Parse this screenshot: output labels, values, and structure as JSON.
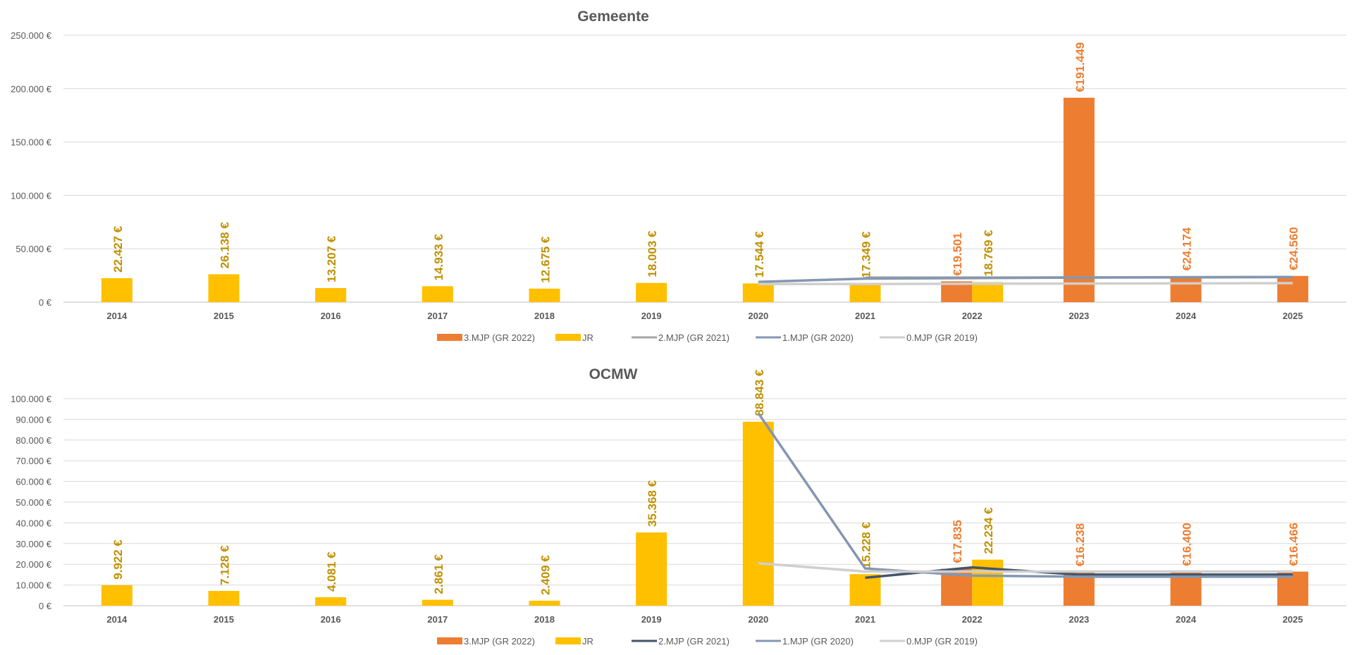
{
  "colors": {
    "mjp3": "#ED7D31",
    "jr": "#FFC000",
    "mjp2_top": "#A5A5A5",
    "mjp2_bottom": "#44546A",
    "mjp1": "#8497B0",
    "mjp0": "#D0CECE",
    "jr_label": "#BF9000",
    "mjp3_label": "#ED7D31",
    "grid": "#D9D9D9",
    "axis_text": "#595959"
  },
  "chart_data": [
    {
      "type": "bar",
      "title": "Gemeente",
      "categories": [
        "2014",
        "2015",
        "2016",
        "2017",
        "2018",
        "2019",
        "2020",
        "2021",
        "2022",
        "2023",
        "2024",
        "2025"
      ],
      "ylim": [
        0,
        250000
      ],
      "ytick_labels": [
        "0 €",
        "50.000 €",
        "100.000 €",
        "150.000 €",
        "200.000 €",
        "250.000 €"
      ],
      "grid": true,
      "legend_position": "bottom",
      "series": [
        {
          "name": "3.MJP (GR 2022)",
          "kind": "bar",
          "color": "#ED7D31",
          "values": [
            null,
            null,
            null,
            null,
            null,
            null,
            null,
            null,
            19501,
            191449,
            24174,
            24560
          ],
          "labels": [
            null,
            null,
            null,
            null,
            null,
            null,
            null,
            null,
            "€19.501",
            "€191.449",
            "€24.174",
            "€24.560"
          ]
        },
        {
          "name": "JR",
          "kind": "bar",
          "color": "#FFC000",
          "values": [
            22427,
            26138,
            13207,
            14933,
            12675,
            18003,
            17544,
            17349,
            18769,
            null,
            null,
            null
          ],
          "labels": [
            "22.427 €",
            "26.138 €",
            "13.207 €",
            "14.933 €",
            "12.675 €",
            "18.003 €",
            "17.544 €",
            "17.349 €",
            "18.769 €",
            null,
            null,
            null
          ]
        },
        {
          "name": "2.MJP (GR 2021)",
          "kind": "line",
          "color": "#A5A5A5",
          "values": [
            null,
            null,
            null,
            null,
            null,
            null,
            null,
            23000,
            23000,
            23200,
            23400,
            23600
          ]
        },
        {
          "name": "1.MJP (GR 2020)",
          "kind": "line",
          "color": "#8497B0",
          "values": [
            null,
            null,
            null,
            null,
            null,
            null,
            19000,
            22000,
            22500,
            23000,
            23200,
            23500
          ]
        },
        {
          "name": "0.MJP (GR 2019)",
          "kind": "line",
          "color": "#D0CECE",
          "values": [
            null,
            null,
            null,
            null,
            null,
            null,
            17000,
            17000,
            17200,
            17400,
            17600,
            17800
          ]
        }
      ]
    },
    {
      "type": "bar",
      "title": "OCMW",
      "categories": [
        "2014",
        "2015",
        "2016",
        "2017",
        "2018",
        "2019",
        "2020",
        "2021",
        "2022",
        "2023",
        "2024",
        "2025"
      ],
      "ylim": [
        0,
        100000
      ],
      "ytick_labels": [
        "0 €",
        "10.000 €",
        "20.000 €",
        "30.000 €",
        "40.000 €",
        "50.000 €",
        "60.000 €",
        "70.000 €",
        "80.000 €",
        "90.000 €",
        "100.000 €"
      ],
      "grid": true,
      "legend_position": "bottom",
      "series": [
        {
          "name": "3.MJP (GR 2022)",
          "kind": "bar",
          "color": "#ED7D31",
          "values": [
            null,
            null,
            null,
            null,
            null,
            null,
            null,
            null,
            17835,
            16238,
            16400,
            16466
          ],
          "labels": [
            null,
            null,
            null,
            null,
            null,
            null,
            null,
            null,
            "€17.835",
            "€16.238",
            "€16.400",
            "€16.466"
          ]
        },
        {
          "name": "JR",
          "kind": "bar",
          "color": "#FFC000",
          "values": [
            9922,
            7128,
            4081,
            2861,
            2409,
            35368,
            88843,
            15228,
            22234,
            null,
            null,
            null
          ],
          "labels": [
            "9.922 €",
            "7.128 €",
            "4.081 €",
            "2.861 €",
            "2.409 €",
            "35.368 €",
            "88.843 €",
            "15.228 €",
            "22.234 €",
            null,
            null,
            null
          ]
        },
        {
          "name": "2.MJP (GR 2021)",
          "kind": "line",
          "color": "#44546A",
          "values": [
            null,
            null,
            null,
            null,
            null,
            null,
            null,
            13500,
            18500,
            15000,
            15000,
            15000
          ]
        },
        {
          "name": "1.MJP (GR 2020)",
          "kind": "line",
          "color": "#8497B0",
          "values": [
            null,
            null,
            null,
            null,
            null,
            null,
            93000,
            18000,
            14500,
            14000,
            14000,
            14000
          ]
        },
        {
          "name": "0.MJP (GR 2019)",
          "kind": "line",
          "color": "#D0CECE",
          "values": [
            null,
            null,
            null,
            null,
            null,
            null,
            20500,
            16500,
            16500,
            16500,
            16500,
            16500
          ]
        }
      ]
    }
  ]
}
